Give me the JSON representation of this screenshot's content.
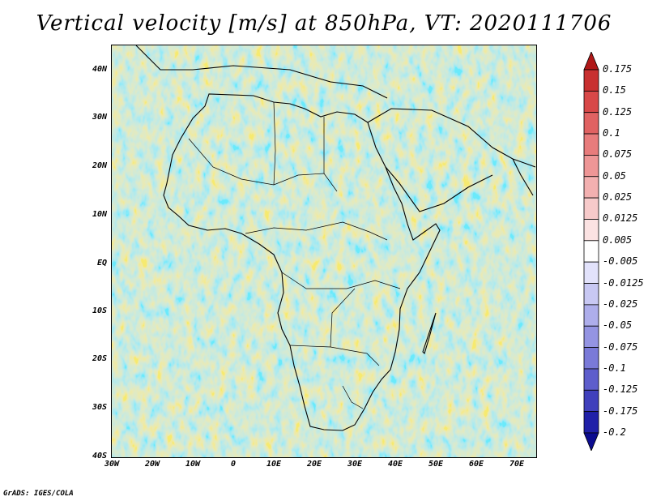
{
  "title": "Vertical velocity [m/s] at 850hPa, VT: 2020111706",
  "map": {
    "region": "Africa",
    "lat_ticks": [
      "40N",
      "30N",
      "20N",
      "10N",
      "EQ",
      "10S",
      "20S",
      "30S",
      "40S"
    ],
    "lon_ticks": [
      "30W",
      "20W",
      "10W",
      "0",
      "10E",
      "20E",
      "30E",
      "40E",
      "50E",
      "60E",
      "70E"
    ]
  },
  "colorbar": {
    "levels": [
      "0.175",
      "0.15",
      "0.125",
      "0.1",
      "0.075",
      "0.05",
      "0.025",
      "0.0125",
      "0.005",
      "-0.005",
      "-0.0125",
      "-0.025",
      "-0.05",
      "-0.075",
      "-0.1",
      "-0.125",
      "-0.175",
      "-0.2"
    ],
    "colors": [
      "#b01818",
      "#c83030",
      "#d84848",
      "#e06262",
      "#e87c7c",
      "#ee9696",
      "#f3b0b0",
      "#f7caca",
      "#fbe2e2",
      "#ffffff",
      "#e2e2fb",
      "#c8c8f3",
      "#aeaeeb",
      "#9494e2",
      "#7a7ad8",
      "#5e5ecc",
      "#4040bc",
      "#2020a8",
      "#0c0c90"
    ]
  },
  "footer": "GrADS: IGES/COLA"
}
